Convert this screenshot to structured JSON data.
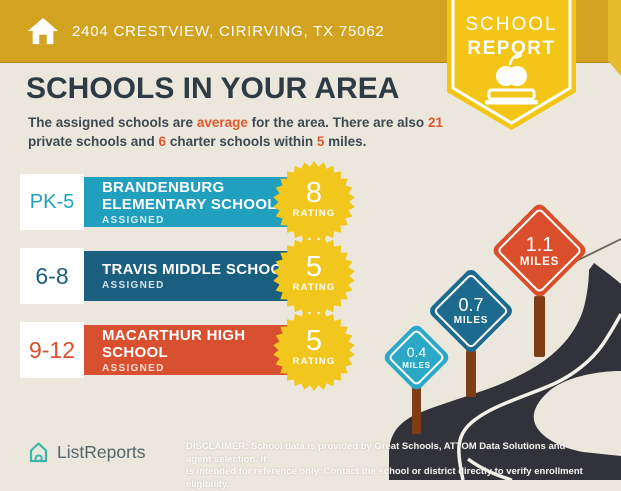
{
  "header": {
    "address": "2404 CRESTVIEW, CIRIRVING, TX 75062"
  },
  "ribbon": {
    "line1": "SCHOOL",
    "line2": "REPORT"
  },
  "intro": {
    "title": "SCHOOLS IN YOUR AREA",
    "s1": "The assigned schools are ",
    "h1": "average",
    "s2": " for the area. There are also ",
    "h2": "21",
    "s3": "private schools and ",
    "h3": "6",
    "s4": " charter schools within ",
    "h4": "5",
    "s5": " miles."
  },
  "schools": [
    {
      "grades": "PK-5",
      "name_line1": "BRANDENBURG",
      "name_line2": "ELEMENTARY SCHOOL",
      "status": "ASSIGNED",
      "rating": "8",
      "rating_label": "RATING",
      "color": "#209FBE"
    },
    {
      "grades": "6-8",
      "name_line1": "TRAVIS MIDDLE SCHOOL",
      "name_line2": "",
      "status": "ASSIGNED",
      "rating": "5",
      "rating_label": "RATING",
      "color": "#1A5F7F"
    },
    {
      "grades": "9-12",
      "name_line1": "MACARTHUR HIGH",
      "name_line2": "SCHOOL",
      "status": "ASSIGNED",
      "rating": "5",
      "rating_label": "RATING",
      "color": "#D85030"
    }
  ],
  "signs": [
    {
      "distance": "0.4",
      "unit": "MILES",
      "color": "#2BA8C6"
    },
    {
      "distance": "0.7",
      "unit": "MILES",
      "color": "#1C6B8F"
    },
    {
      "distance": "1.1",
      "unit": "MILES",
      "color": "#DB4E2B"
    }
  ],
  "footer": {
    "brand": "ListReports",
    "disclaimer_line1": "DISCLAIMER: School data is provided by Great Schools, ATTOM Data Solutions and agent selection. It",
    "disclaimer_line2": "is intended for reference only. Contact the school or district directly to verify enrollment eligibility."
  },
  "colors": {
    "header_gold": "#D2A321",
    "ribbon_yellow": "#F3C517",
    "badge_yellow": "#F2C71D",
    "background_beige": "#EBE7DC",
    "title_navy": "#2E3B44",
    "highlight_orange": "#E0572E",
    "road_dark": "#32323A",
    "post_brown": "#7F3D15",
    "logo_teal": "#3BB7A9"
  }
}
